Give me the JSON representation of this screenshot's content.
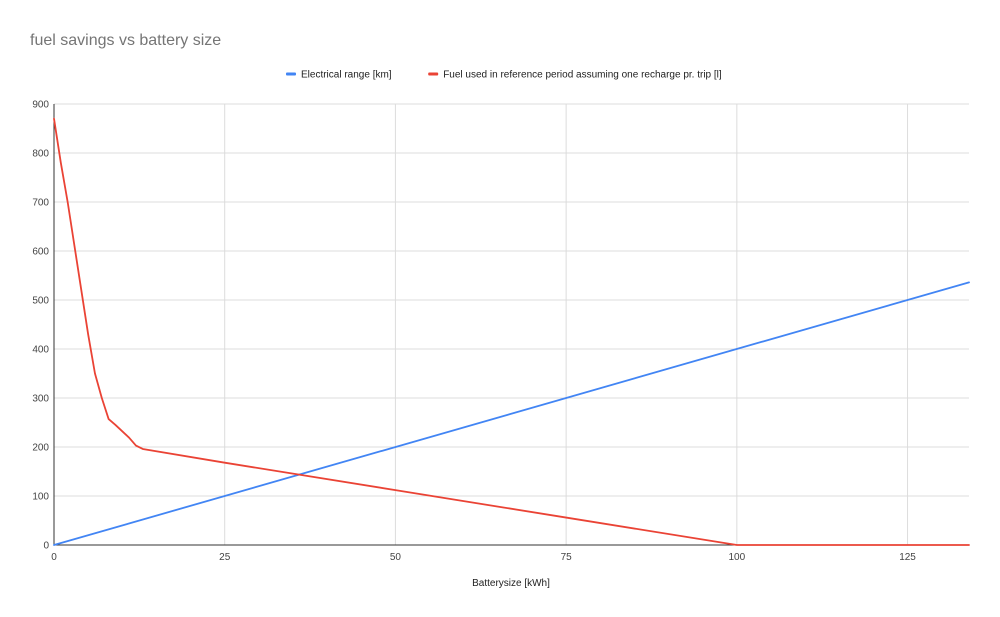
{
  "chart_data": {
    "type": "line",
    "title": "fuel savings vs battery size",
    "xlabel": "Batterysize [kWh]",
    "ylabel": "",
    "xlim": [
      0,
      134
    ],
    "ylim": [
      0,
      900
    ],
    "xticks": [
      0,
      25,
      50,
      75,
      100,
      125
    ],
    "yticks": [
      0,
      100,
      200,
      300,
      400,
      500,
      600,
      700,
      800,
      900
    ],
    "grid": true,
    "legend_position": "top",
    "series": [
      {
        "name": "Electrical range [km]",
        "color": "#4285f4",
        "x": [
          0,
          134
        ],
        "y": [
          0,
          536
        ]
      },
      {
        "name": "Fuel used in reference period assuming one recharge pr. trip [l]",
        "color": "#ea4335",
        "x": [
          0,
          1,
          2,
          3,
          4,
          5,
          6,
          7,
          8,
          9,
          10,
          11,
          12,
          13,
          25,
          50,
          75,
          100,
          110,
          120,
          134
        ],
        "y": [
          870,
          780,
          700,
          610,
          520,
          430,
          350,
          300,
          257,
          245,
          232,
          219,
          203,
          196,
          168,
          112,
          56,
          0,
          0,
          0,
          0
        ]
      }
    ]
  }
}
